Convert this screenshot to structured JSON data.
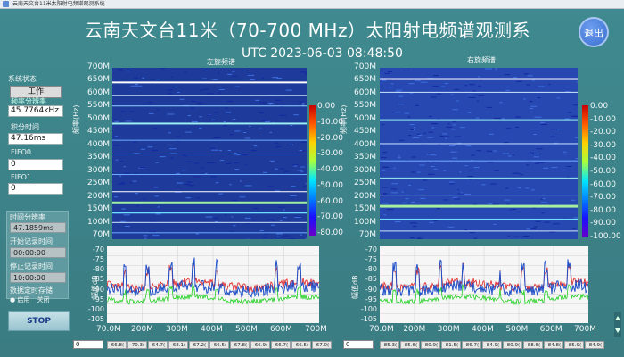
{
  "window": {
    "title": "云南天文台11米太阳射电频谱观测系统"
  },
  "title": "云南天文台11米（70-700 MHz）太阳射电频谱观测系",
  "exit_label": "退出",
  "utc": "UTC 2023-06-03   08:48:50",
  "left": {
    "status_label": "系统状态",
    "status_value": "工作",
    "freqres_label": "频率分辨率",
    "freqres_value": "45.7764kHz",
    "integ_label": "积分时间",
    "integ_value": "47.16ms",
    "fifo0_label": "FIFO0",
    "fifo0_value": "0",
    "fifo1_label": "FIFO1",
    "fifo1_value": "0",
    "timeres_label": "时间分辨率",
    "timeres_value": "47.1859ms",
    "start_label": "开始记录时间",
    "start_value": "00:00:00",
    "stop_label": "停止记录时间",
    "stop_value": "10:00:00",
    "store_label": "数据定时存储",
    "enable_label": "启用",
    "disable_label": "关闭",
    "stop_button": "STOP"
  },
  "left_plot": {
    "title": "左旋频谱",
    "ylabel": "频率(Hz)",
    "yticks": [
      "700M",
      "650M",
      "600M",
      "550M",
      "500M",
      "450M",
      "400M",
      "350M",
      "300M",
      "250M",
      "200M",
      "150M",
      "100M",
      "70M"
    ],
    "colorbar_ticks": [
      "0.00",
      "-10.00",
      "-20.00",
      "-30.00",
      "-40.00",
      "-50.00",
      "-60.00",
      "-70.00",
      "-80.00"
    ]
  },
  "right_plot": {
    "title": "右旋频谱",
    "ylabel": "频率(Hz)",
    "yticks": [
      "700M",
      "650M",
      "600M",
      "550M",
      "500M",
      "450M",
      "400M",
      "350M",
      "300M",
      "250M",
      "200M",
      "150M",
      "100M",
      "70M"
    ],
    "colorbar_ticks": [
      "0.00",
      "-10.00",
      "-20.00",
      "-30.00",
      "-40.00",
      "-50.00",
      "-60.00",
      "-70.00",
      "-80.00",
      "-90.00",
      "-100.00"
    ]
  },
  "left_spectrum": {
    "ylabel": "幅值dB",
    "yticks": [
      "-70",
      "-75",
      "-80",
      "-85",
      "-90",
      "-95",
      "-100",
      "-105"
    ],
    "xticks": [
      "70.0M",
      "200M",
      "300M",
      "400M",
      "500M",
      "600M",
      "700M"
    ],
    "index_value": "0",
    "array": [
      "-66.8(",
      "-70.3(",
      "-64.7(",
      "-68.1(",
      "-67.2(",
      "-66.5(",
      "-67.8(",
      "-66.9(",
      "-66.7(",
      "-66.5(",
      "-67.0("
    ]
  },
  "right_spectrum": {
    "ylabel": "幅值dB",
    "yticks": [
      "-70",
      "-75",
      "-80",
      "-85",
      "-90",
      "-95",
      "-100",
      "-105"
    ],
    "xticks": [
      "70.0M",
      "200M",
      "300M",
      "400M",
      "500M",
      "600M",
      "700M"
    ],
    "index_value": "0",
    "array": [
      "-85.3(",
      "-85.6(",
      "-80.9(",
      "-81.5(",
      "-86.7(",
      "-84.9(",
      "-80.9(",
      "-88.6(",
      "-84.8(",
      "-85.9(",
      "-84.9("
    ]
  },
  "colors": {
    "background": "#3d7f85",
    "plot_bg": "#a8d8e4",
    "trace_blue": "#2050c8",
    "trace_red": "#e02020",
    "trace_green": "#20d020"
  }
}
